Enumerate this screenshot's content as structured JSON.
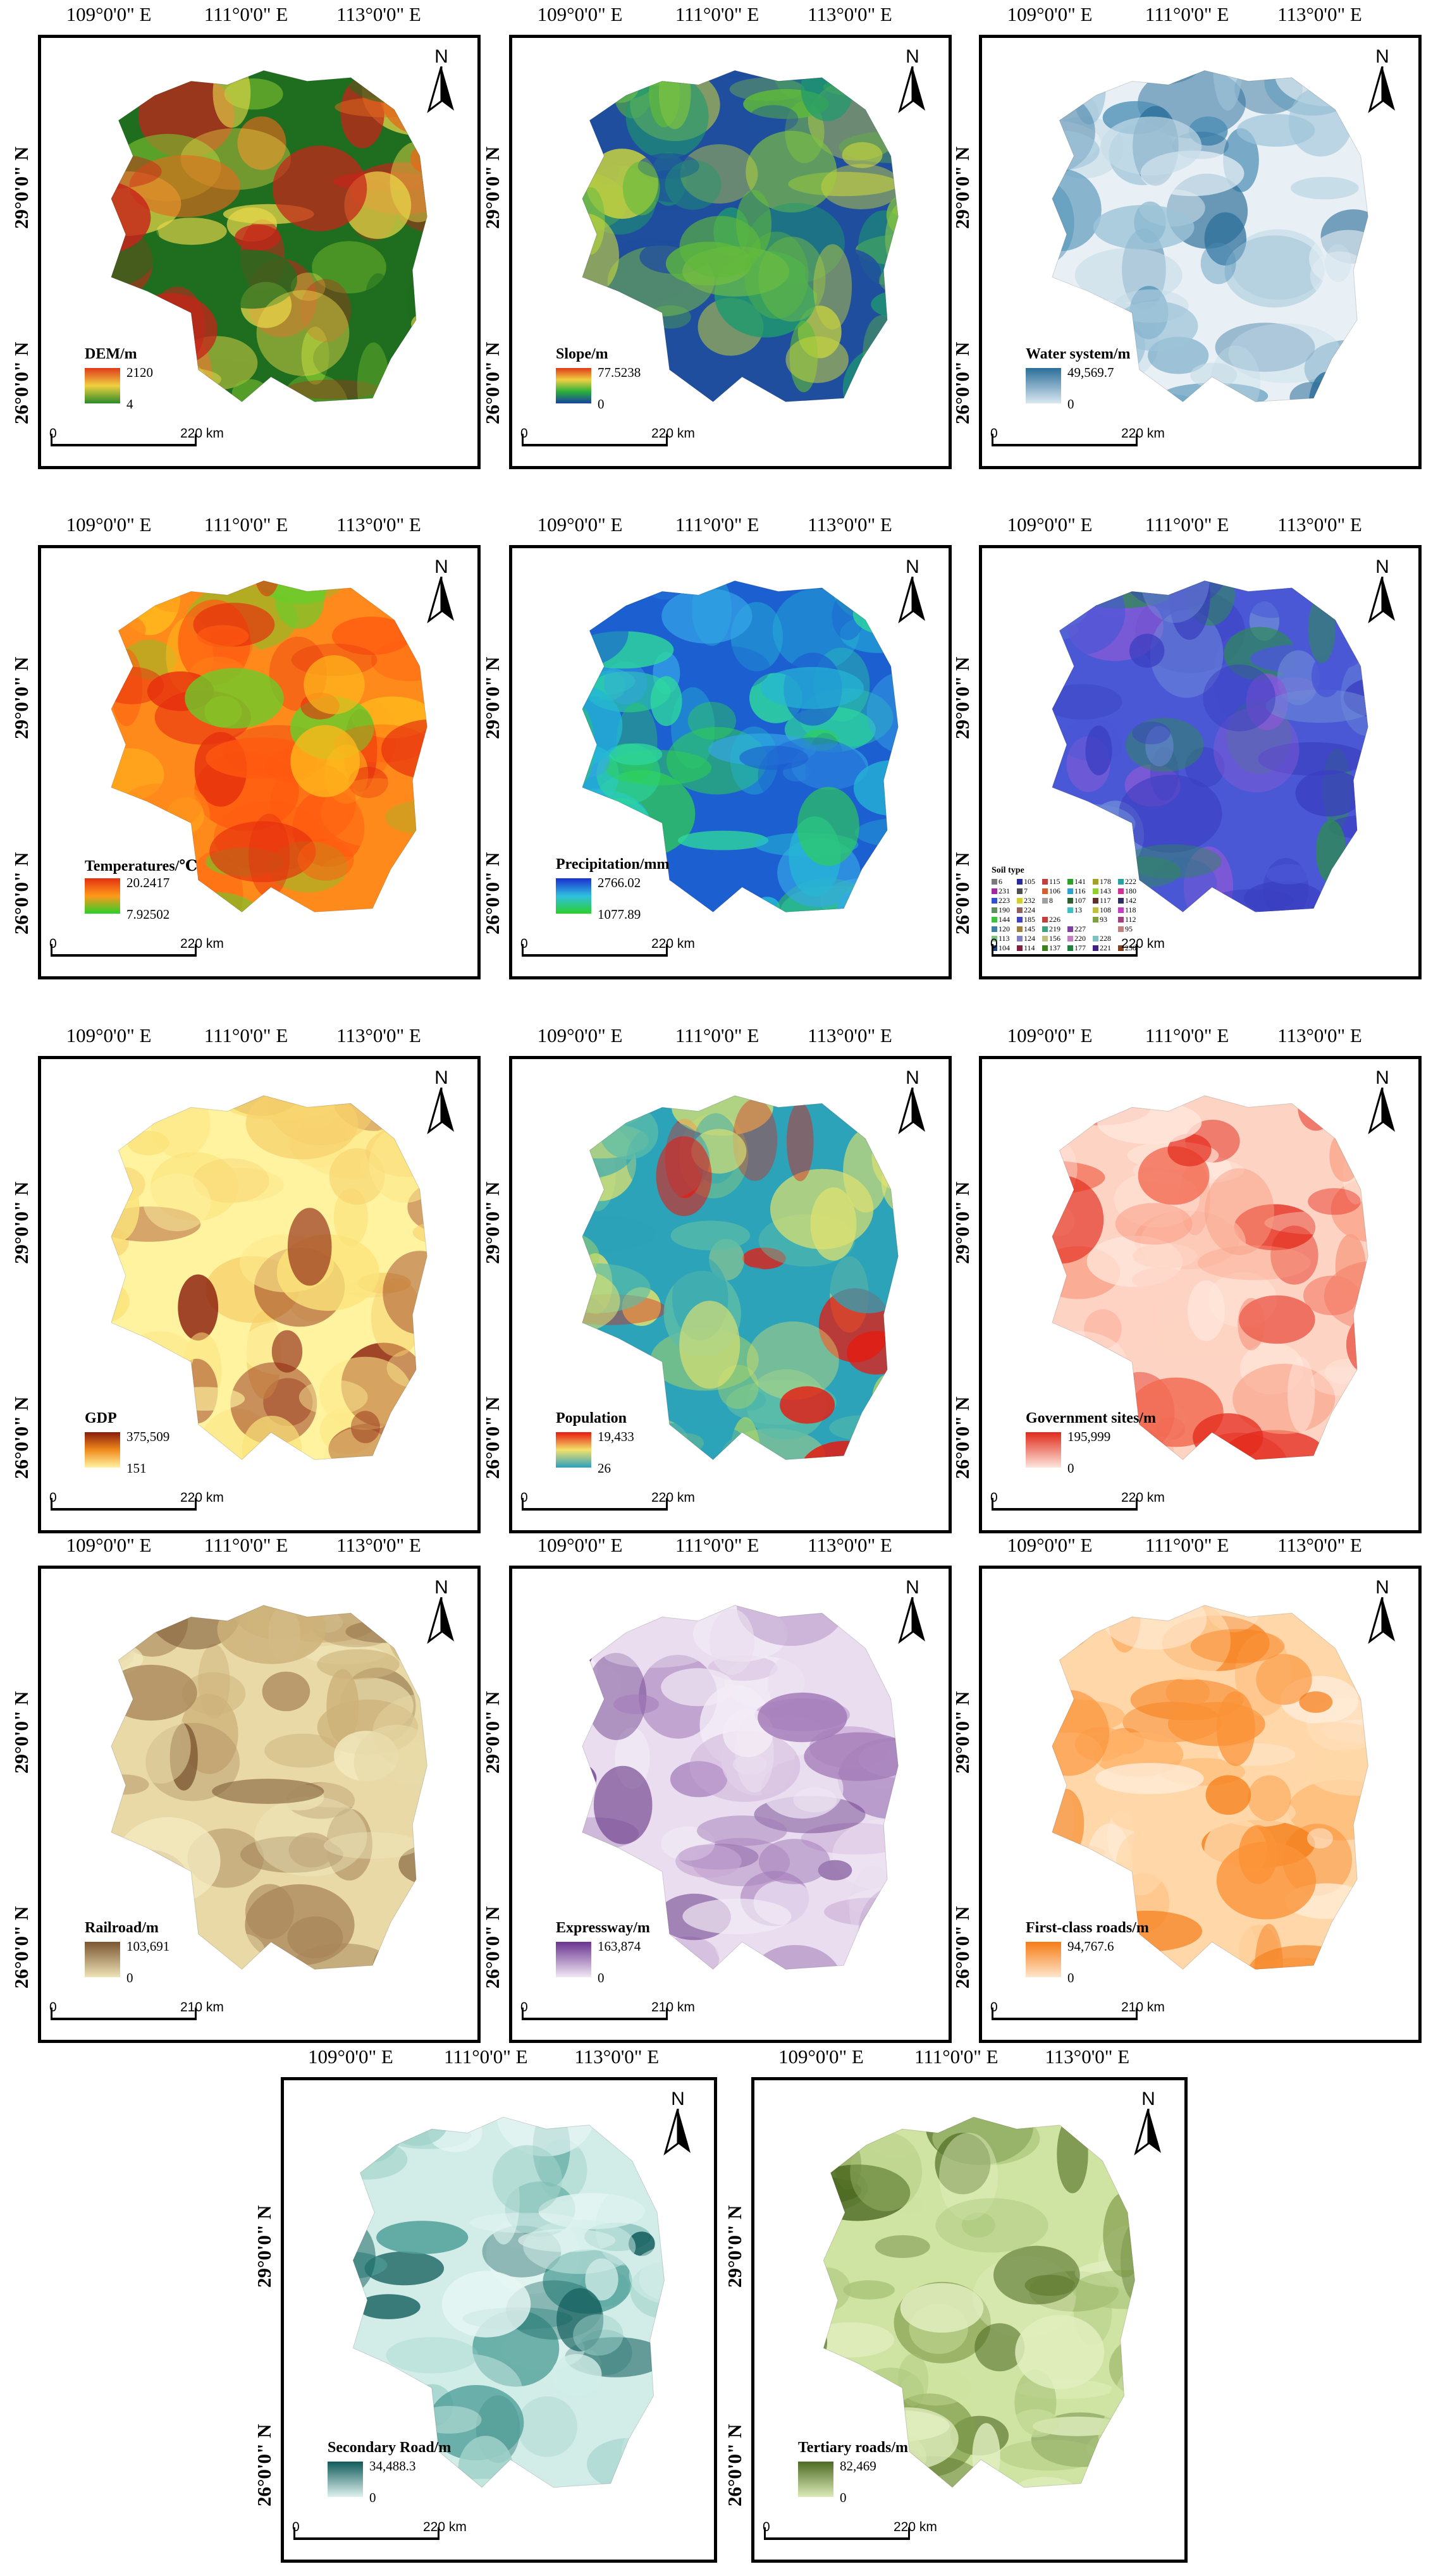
{
  "axes": {
    "lon": [
      "109°0'0\" E",
      "111°0'0\" E",
      "113°0'0\" E"
    ],
    "lon_bottom": [
      "109°0'0\" E",
      "111°0'0\" E",
      "113°0'0\" E"
    ],
    "lat": [
      "29°0'0\" N",
      "26°0'0\" N"
    ],
    "north": "N"
  },
  "panels": [
    {
      "id": "dem",
      "title": "DEM/m",
      "max": "2120",
      "min": "4",
      "scale": "220 km",
      "colors": [
        "#1f6e1f",
        "#7bbf2f",
        "#e8d84a",
        "#e36a1c",
        "#c7231a"
      ],
      "ramp": [
        "#e03a1a",
        "#f0d040",
        "#2a8a2a"
      ]
    },
    {
      "id": "slope",
      "title": "Slope/m",
      "max": "77.5238",
      "min": "0",
      "scale": "220 km",
      "colors": [
        "#1f4e9e",
        "#1e9a6e",
        "#5fba3a",
        "#c9d43e",
        "#7dc043"
      ],
      "ramp": [
        "#e03a1a",
        "#f0d040",
        "#2ab03a",
        "#1a3fa0"
      ]
    },
    {
      "id": "water",
      "title": "Water system/m",
      "max": "49,569.7",
      "min": "0",
      "scale": "220 km",
      "colors": [
        "#e8f0f5",
        "#9cc3d8",
        "#4c8fb5",
        "#c6dce8",
        "#2c6e9a"
      ],
      "ramp": [
        "#2c6e9a",
        "#d9e8f0"
      ]
    },
    {
      "id": "temp",
      "title": "Temperatures/℃",
      "max": "20.2417",
      "min": "7.92502",
      "scale": "220 km",
      "colors": [
        "#ff8a1c",
        "#ff5a10",
        "#e62e0e",
        "#ffb81c",
        "#6acc2a"
      ],
      "ramp": [
        "#e33010",
        "#ff9a1a",
        "#2ad02a"
      ]
    },
    {
      "id": "precip",
      "title": "Precipitation/mm",
      "max": "2766.02",
      "min": "1077.89",
      "scale": "220 km",
      "colors": [
        "#1c5fd0",
        "#25b7d6",
        "#2ed89e",
        "#2fcf52",
        "#36a7e8"
      ],
      "ramp": [
        "#1a2fd0",
        "#30c0e0",
        "#2ad02a"
      ]
    },
    {
      "id": "soil",
      "title": "Soil type",
      "max": "",
      "min": "",
      "scale": "220 km",
      "colors": [
        "#4a58d6",
        "#3a3ec0",
        "#6f8bd8",
        "#8a5ad6",
        "#2e8a56"
      ],
      "ramp": []
    },
    {
      "id": "gdp",
      "title": "GDP",
      "max": "375,509",
      "min": "151",
      "scale": "220 km",
      "colors": [
        "#fff3a0",
        "#fde88a",
        "#fbe37a",
        "#f6cf6a",
        "#8a1c0c"
      ],
      "ramp": [
        "#8a1c0c",
        "#f08a1c",
        "#fff3a0"
      ]
    },
    {
      "id": "pop",
      "title": "Population",
      "max": "19,433",
      "min": "26",
      "scale": "220 km",
      "colors": [
        "#2ca3b8",
        "#5dbda8",
        "#a7d46a",
        "#dfe270",
        "#e8180f"
      ],
      "ramp": [
        "#e8180f",
        "#f3e26a",
        "#2aa0c0"
      ]
    },
    {
      "id": "gov",
      "title": "Government sites/m",
      "max": "195,999",
      "min": "0",
      "scale": "220 km",
      "colors": [
        "#fdd3c3",
        "#f99f85",
        "#f26a52",
        "#ffe7dc",
        "#e42a1c"
      ],
      "ramp": [
        "#e02a1a",
        "#fde5dc"
      ]
    },
    {
      "id": "rail",
      "title": "Railroad/m",
      "max": "103,691",
      "min": "0",
      "scale": "210 km",
      "colors": [
        "#e8d9a6",
        "#cdb27a",
        "#a9865a",
        "#f3eac0",
        "#7a5530"
      ],
      "ramp": [
        "#7a5530",
        "#efe3b8"
      ]
    },
    {
      "id": "express",
      "title": "Expressway/m",
      "max": "163,874",
      "min": "0",
      "scale": "210 km",
      "colors": [
        "#e9ddef",
        "#c7a6d3",
        "#a27ab8",
        "#f3ecf6",
        "#5e2d80"
      ],
      "ramp": [
        "#6a3390",
        "#f1e8f4"
      ]
    },
    {
      "id": "first",
      "title": "First-class roads/m",
      "max": "94,767.6",
      "min": "0",
      "scale": "210 km",
      "colors": [
        "#ffd7a8",
        "#ffb266",
        "#fb9236",
        "#ffecd8",
        "#f57b15"
      ],
      "ramp": [
        "#f57b15",
        "#ffe6cc"
      ]
    },
    {
      "id": "second",
      "title": "Secondary Road/m",
      "max": "34,488.3",
      "min": "0",
      "scale": "220 km",
      "colors": [
        "#d2ede8",
        "#9fd1c9",
        "#4d9e97",
        "#e6f6f4",
        "#0e5b5a"
      ],
      "ramp": [
        "#0e5b5a",
        "#dff2ef"
      ]
    },
    {
      "id": "tertiary",
      "title": "Tertiary roads/m",
      "max": "82,469",
      "min": "0",
      "scale": "220 km",
      "colors": [
        "#cfe3a2",
        "#a9c57a",
        "#7f9b4a",
        "#e2efc0",
        "#4d6a22"
      ],
      "ramp": [
        "#4d6a22",
        "#dcebb8"
      ]
    }
  ],
  "soil_legend": [
    "6",
    "105",
    "115",
    "141",
    "178",
    "222",
    "231",
    "7",
    "106",
    "116",
    "143",
    "180",
    "223",
    "232",
    "8",
    "107",
    "117",
    "142",
    "190",
    "224",
    "",
    "13",
    "108",
    "118",
    "144",
    "185",
    "226",
    "",
    "93",
    "112",
    "120",
    "145",
    "219",
    "227",
    "",
    "95",
    "113",
    "124",
    "156",
    "220",
    "228",
    "",
    "104",
    "114",
    "137",
    "177",
    "221",
    "230",
    ""
  ],
  "soil_colors": [
    "#7a7a7a",
    "#2a2aa0",
    "#c04040",
    "#2aa02a",
    "#a0a02a",
    "#2aa0a0",
    "#a02aa0",
    "#505050",
    "#d06030",
    "#30a0d0",
    "#90d030",
    "#d03090",
    "#3050d0",
    "#d0d030",
    "#a0a0a0",
    "#306030",
    "#603030",
    "#303060",
    "#609060",
    "#906060",
    "#ffffff",
    "#40c0c0",
    "#c0c040",
    "#c040c0",
    "#40c040",
    "#4040c0",
    "#c04040",
    "#ffffff",
    "#80a040",
    "#a04080",
    "#4080a0",
    "#a08040",
    "#40a080",
    "#8040a0",
    "#ffffff",
    "#c08080",
    "#80c080",
    "#8080c0",
    "#c0c080",
    "#c080c0",
    "#80c0c0",
    "#ffffff",
    "#204080",
    "#802040",
    "#408020",
    "#208040",
    "#402080",
    "#804020",
    "#ffffff"
  ]
}
